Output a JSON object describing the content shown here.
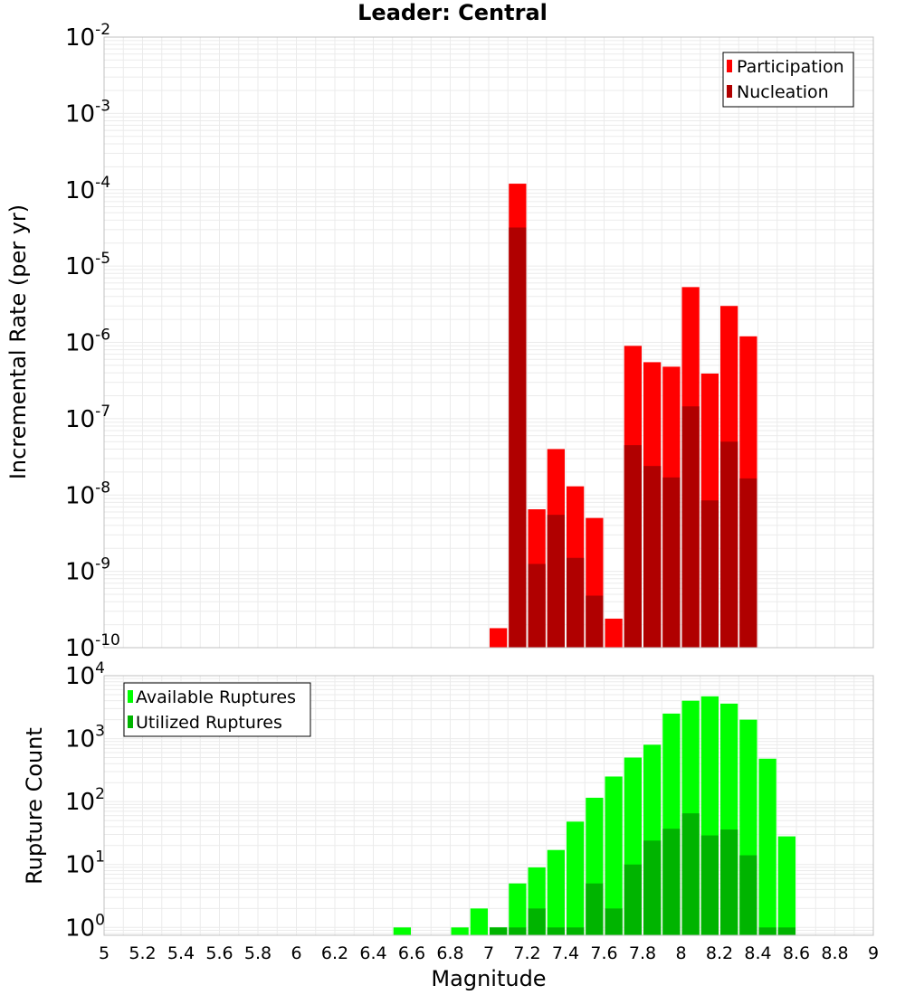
{
  "title": "Leader: Central",
  "colors": {
    "participation": "#ff0000",
    "nucleation": "#b00000",
    "available": "#00ff00",
    "utilized": "#00b400",
    "grid": "#ebebeb",
    "frame": "#c0c0c0"
  },
  "chart_data": [
    {
      "type": "bar",
      "title": "Leader: Central",
      "ylabel": "Incremental Rate (per yr)",
      "xlabel": "",
      "yscale": "log",
      "ylim": [
        1e-10,
        0.01
      ],
      "xlim": [
        5,
        9
      ],
      "bin_width": 0.1,
      "grid": true,
      "legend_position": "top-right",
      "y_tick_exponents": [
        "-10",
        "-9",
        "-8",
        "-7",
        "-6",
        "-5",
        "-4",
        "-3",
        "-2"
      ],
      "y_tick_base": "10",
      "series": [
        {
          "name": "Participation",
          "x": [
            7.05,
            7.15,
            7.25,
            7.35,
            7.45,
            7.55,
            7.65,
            7.75,
            7.85,
            7.95,
            8.05,
            8.15,
            8.25,
            8.35
          ],
          "values": [
            1.8e-10,
            0.00012,
            6.5e-09,
            4e-08,
            1.3e-08,
            5e-09,
            2.4e-10,
            9e-07,
            5.5e-07,
            4.8e-07,
            5.3e-06,
            3.9e-07,
            3e-06,
            1.2e-06
          ]
        },
        {
          "name": "Nucleation",
          "x": [
            7.15,
            7.25,
            7.35,
            7.45,
            7.55,
            7.75,
            7.85,
            7.95,
            8.05,
            8.15,
            8.25,
            8.35
          ],
          "values": [
            3.2e-05,
            1.25e-09,
            5.5e-09,
            1.5e-09,
            4.8e-10,
            4.5e-08,
            2.4e-08,
            1.7e-08,
            1.45e-07,
            8.5e-09,
            5e-08,
            1.65e-08
          ]
        }
      ]
    },
    {
      "type": "bar",
      "xlabel": "Magnitude",
      "ylabel": "Rupture Count",
      "yscale": "log",
      "ylim": [
        0.75,
        10000
      ],
      "xlim": [
        5,
        9
      ],
      "bin_width": 0.1,
      "grid": true,
      "legend_position": "top-left",
      "x_ticks": [
        "5",
        "5.2",
        "5.4",
        "5.6",
        "5.8",
        "6",
        "6.2",
        "6.4",
        "6.6",
        "6.8",
        "7",
        "7.2",
        "7.4",
        "7.6",
        "7.8",
        "8",
        "8.2",
        "8.4",
        "8.6",
        "8.8",
        "9"
      ],
      "y_tick_exponents": [
        "0",
        "1",
        "2",
        "3",
        "4"
      ],
      "y_tick_base": "10",
      "series": [
        {
          "name": "Available Ruptures",
          "x": [
            6.55,
            6.85,
            6.95,
            7.05,
            7.15,
            7.25,
            7.35,
            7.45,
            7.55,
            7.65,
            7.75,
            7.85,
            7.95,
            8.05,
            8.15,
            8.25,
            8.35,
            8.45,
            8.55
          ],
          "values": [
            1,
            1,
            2,
            1,
            5,
            9,
            17,
            48,
            115,
            250,
            500,
            800,
            2500,
            4000,
            4700,
            3600,
            2000,
            480,
            28
          ]
        },
        {
          "name": "Utilized Ruptures",
          "x": [
            7.05,
            7.15,
            7.25,
            7.35,
            7.45,
            7.55,
            7.65,
            7.75,
            7.85,
            7.95,
            8.05,
            8.15,
            8.25,
            8.35,
            8.45,
            8.55
          ],
          "values": [
            1,
            1,
            2,
            1,
            1,
            5,
            2,
            10,
            24,
            37,
            65,
            29,
            36,
            14,
            1,
            1
          ]
        }
      ]
    }
  ]
}
